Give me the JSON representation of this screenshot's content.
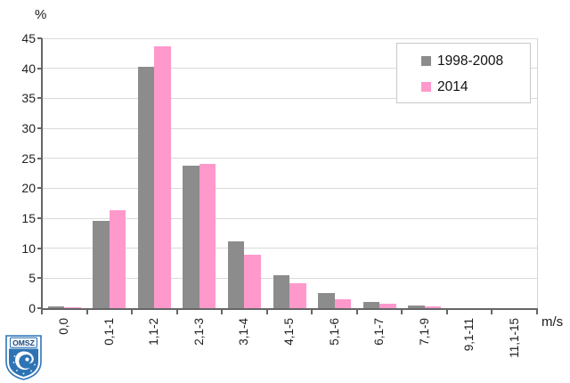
{
  "chart_data": {
    "type": "bar",
    "title": "",
    "ylabel": "%",
    "xlabel": "m/s",
    "ylim": [
      0,
      45
    ],
    "yticks": [
      0,
      5,
      10,
      15,
      20,
      25,
      30,
      35,
      40,
      45
    ],
    "grid": true,
    "legend_position": "top-right",
    "categories": [
      "0,0",
      "0,1-1",
      "1,1-2",
      "2,1-3",
      "3,1-4",
      "4,1-5",
      "5,1-6",
      "6,1-7",
      "7,1-9",
      "9,1-11",
      "11,1-15"
    ],
    "series": [
      {
        "name": "1998-2008",
        "color": "#8C8C8C",
        "values": [
          0.3,
          14.6,
          40.2,
          23.7,
          11.1,
          5.5,
          2.5,
          1.1,
          0.4,
          0,
          0
        ]
      },
      {
        "name": "2014",
        "color": "#FF99CC",
        "values": [
          0.1,
          16.3,
          43.7,
          24.1,
          8.9,
          4.1,
          1.5,
          0.7,
          0.3,
          0,
          0
        ]
      }
    ]
  },
  "colors": {
    "gridline": "#DADADA",
    "axis": "#666666",
    "logo_blue": "#2E74B5",
    "logo_dark_blue": "#17457E"
  },
  "logo": {
    "text": "OMSZ"
  }
}
